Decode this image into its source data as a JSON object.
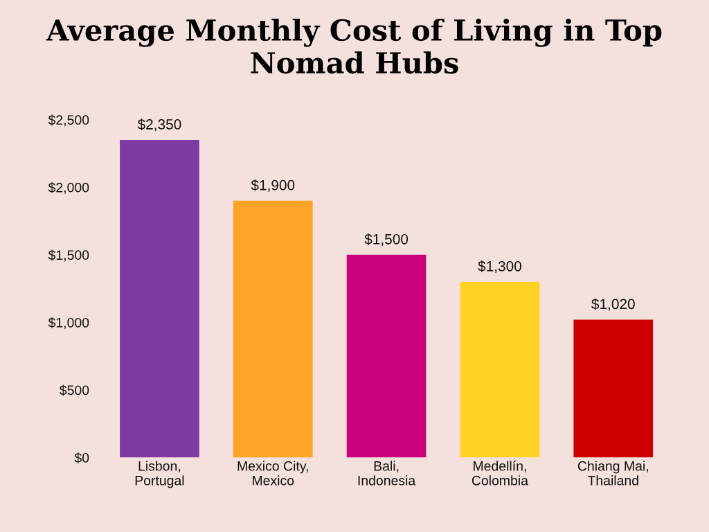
{
  "chart_data": {
    "type": "bar",
    "title": "Average Monthly Cost of Living in Top Nomad Hubs",
    "categories": [
      "Lisbon,\nPortugal",
      "Mexico City,\nMexico",
      "Bali,\nIndonesia",
      "Medellín,\nColombia",
      "Chiang Mai,\nThailand"
    ],
    "values": [
      2350,
      1900,
      1500,
      1300,
      1020
    ],
    "colors": [
      "#7f3aa3",
      "#ffa424",
      "#c9007a",
      "#ffd223",
      "#cc0000"
    ],
    "value_labels": [
      "$2,350",
      "$1,900",
      "$1,500",
      "$1,300",
      "$1,020"
    ],
    "ylim": [
      0,
      2500
    ],
    "yticks": [
      {
        "value": 0,
        "label": "$0"
      },
      {
        "value": 500,
        "label": "$500"
      },
      {
        "value": 1000,
        "label": "$1,000"
      },
      {
        "value": 1500,
        "label": "$1,500"
      },
      {
        "value": 2000,
        "label": "$2,000"
      },
      {
        "value": 2500,
        "label": "$2,500"
      }
    ],
    "grid": false,
    "legend": false
  }
}
